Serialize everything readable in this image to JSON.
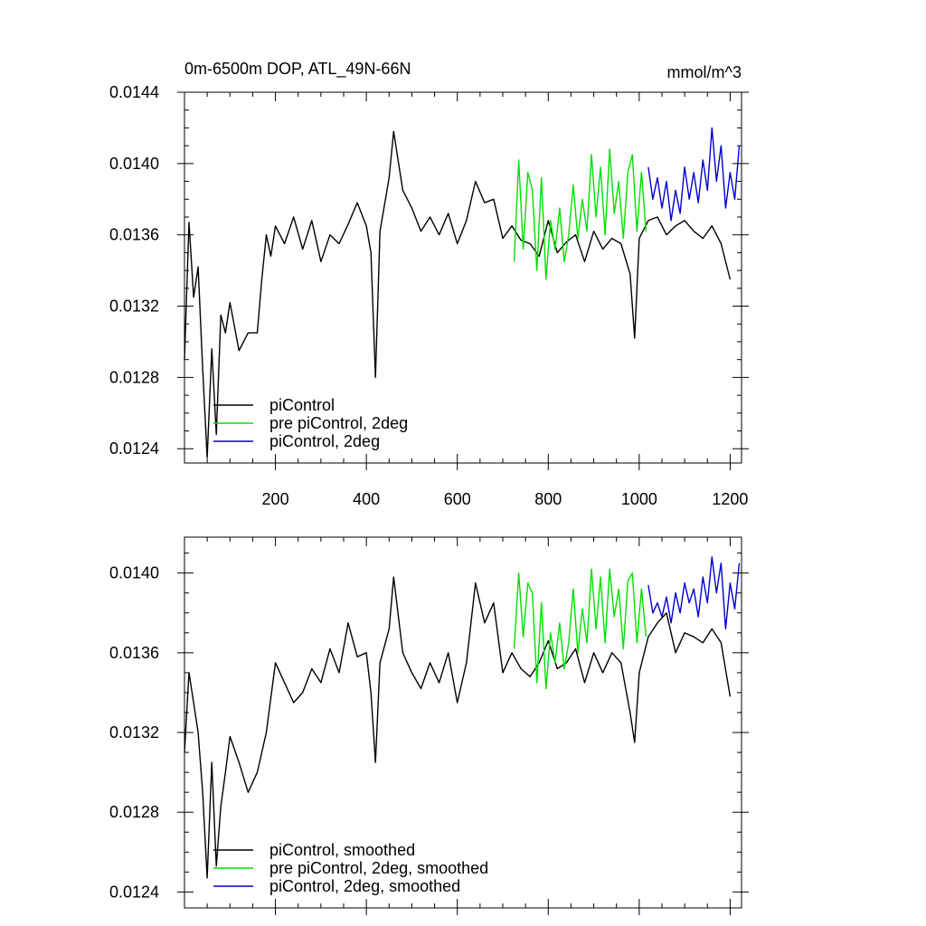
{
  "chart_data": [
    {
      "type": "line",
      "title": "0m-6500m DOP, ATL_49N-66N",
      "units": "mmol/m^3",
      "xlim": [
        0,
        1225
      ],
      "ylim": [
        0.01232,
        0.0144
      ],
      "xticks": [
        200,
        400,
        600,
        800,
        1000,
        1200
      ],
      "xtick_labels": [
        "200",
        "400",
        "600",
        "800",
        "1000",
        "1200"
      ],
      "yticks": [
        0.0124,
        0.0128,
        0.0132,
        0.0136,
        0.014,
        0.0144
      ],
      "ytick_labels": [
        "0.0124",
        "0.0128",
        "0.0132",
        "0.0136",
        "0.0140",
        "0.0144"
      ],
      "legend_position": "bottom-left",
      "series": [
        {
          "name": "piControl",
          "color": "#000000",
          "x": [
            0,
            10,
            20,
            30,
            40,
            50,
            60,
            70,
            80,
            90,
            100,
            120,
            140,
            160,
            170,
            180,
            190,
            200,
            220,
            240,
            260,
            280,
            300,
            320,
            340,
            360,
            380,
            400,
            410,
            420,
            430,
            450,
            460,
            480,
            500,
            520,
            540,
            560,
            580,
            600,
            620,
            640,
            660,
            680,
            700,
            720,
            740,
            760,
            780,
            800,
            820,
            840,
            860,
            880,
            900,
            920,
            940,
            960,
            980,
            990,
            1000,
            1020,
            1040,
            1060,
            1080,
            1100,
            1120,
            1140,
            1160,
            1180,
            1200
          ],
          "values": [
            0.0129,
            0.01367,
            0.01325,
            0.01342,
            0.01285,
            0.01235,
            0.01296,
            0.01248,
            0.01315,
            0.01305,
            0.01322,
            0.01295,
            0.01305,
            0.01305,
            0.01335,
            0.0136,
            0.01348,
            0.01365,
            0.01355,
            0.0137,
            0.01352,
            0.01368,
            0.01345,
            0.0136,
            0.01355,
            0.01366,
            0.01378,
            0.01365,
            0.0135,
            0.0128,
            0.01362,
            0.01392,
            0.01418,
            0.01385,
            0.01375,
            0.01362,
            0.0137,
            0.0136,
            0.01372,
            0.01355,
            0.01368,
            0.0139,
            0.01378,
            0.0138,
            0.01358,
            0.01365,
            0.01357,
            0.01355,
            0.01348,
            0.01368,
            0.0135,
            0.01356,
            0.0136,
            0.01345,
            0.01362,
            0.01352,
            0.01358,
            0.01355,
            0.01338,
            0.01302,
            0.01358,
            0.01368,
            0.0137,
            0.0136,
            0.01365,
            0.01368,
            0.01362,
            0.01358,
            0.01365,
            0.01355,
            0.01335
          ]
        },
        {
          "name": "pre piControl, 2deg",
          "color": "#00e000",
          "x": [
            725,
            735,
            745,
            755,
            765,
            775,
            785,
            795,
            805,
            815,
            825,
            835,
            845,
            855,
            865,
            875,
            885,
            895,
            905,
            915,
            925,
            935,
            945,
            955,
            965,
            975,
            985,
            995,
            1005,
            1015
          ],
          "values": [
            0.01345,
            0.01402,
            0.01352,
            0.01395,
            0.01385,
            0.0134,
            0.01392,
            0.01335,
            0.01368,
            0.01352,
            0.01375,
            0.01345,
            0.0136,
            0.01388,
            0.01358,
            0.0138,
            0.01362,
            0.01405,
            0.0137,
            0.01398,
            0.0136,
            0.01408,
            0.01372,
            0.0139,
            0.01358,
            0.01395,
            0.01405,
            0.01362,
            0.01395,
            0.01362
          ]
        },
        {
          "name": "piControl, 2deg",
          "color": "#0000d0",
          "x": [
            1020,
            1030,
            1040,
            1050,
            1060,
            1070,
            1080,
            1090,
            1100,
            1110,
            1120,
            1130,
            1140,
            1150,
            1160,
            1170,
            1180,
            1190,
            1200,
            1210,
            1220
          ],
          "values": [
            0.01398,
            0.0138,
            0.01392,
            0.01375,
            0.0139,
            0.01368,
            0.01385,
            0.01372,
            0.01398,
            0.0138,
            0.01395,
            0.01378,
            0.01402,
            0.01385,
            0.0142,
            0.0139,
            0.0141,
            0.01375,
            0.01395,
            0.0138,
            0.0141
          ]
        }
      ]
    },
    {
      "type": "line",
      "title": "",
      "units": "",
      "xlim": [
        0,
        1225
      ],
      "ylim": [
        0.01232,
        0.01418
      ],
      "xticks": [
        200,
        400,
        600,
        800,
        1000,
        1200
      ],
      "xtick_labels": [],
      "yticks": [
        0.0124,
        0.0128,
        0.0132,
        0.0136,
        0.014
      ],
      "ytick_labels": [
        "0.0124",
        "0.0128",
        "0.0132",
        "0.0136",
        "0.0140"
      ],
      "legend_position": "bottom-left",
      "series": [
        {
          "name": "piControl, smoothed",
          "color": "#000000",
          "x": [
            0,
            10,
            20,
            30,
            40,
            50,
            60,
            70,
            80,
            90,
            100,
            120,
            140,
            160,
            180,
            200,
            220,
            240,
            260,
            280,
            300,
            320,
            340,
            360,
            380,
            400,
            410,
            420,
            430,
            450,
            460,
            480,
            500,
            520,
            540,
            560,
            580,
            600,
            620,
            640,
            660,
            680,
            700,
            720,
            740,
            760,
            780,
            800,
            820,
            840,
            860,
            880,
            900,
            920,
            940,
            960,
            980,
            990,
            1000,
            1020,
            1040,
            1060,
            1080,
            1100,
            1120,
            1140,
            1160,
            1180,
            1200
          ],
          "values": [
            0.0131,
            0.0135,
            0.01335,
            0.0132,
            0.0129,
            0.01247,
            0.01305,
            0.01253,
            0.01283,
            0.013,
            0.01318,
            0.01305,
            0.0129,
            0.013,
            0.0132,
            0.01355,
            0.01345,
            0.01335,
            0.0134,
            0.01352,
            0.01345,
            0.01362,
            0.0135,
            0.01375,
            0.01358,
            0.0136,
            0.0134,
            0.01305,
            0.01355,
            0.01372,
            0.01398,
            0.0136,
            0.0135,
            0.01342,
            0.01355,
            0.01345,
            0.0136,
            0.01335,
            0.01355,
            0.01395,
            0.01375,
            0.01385,
            0.0135,
            0.0136,
            0.01352,
            0.01348,
            0.01355,
            0.01366,
            0.01352,
            0.01355,
            0.01362,
            0.01345,
            0.0136,
            0.0135,
            0.0136,
            0.01355,
            0.0133,
            0.01315,
            0.0135,
            0.01368,
            0.01375,
            0.0138,
            0.0136,
            0.0137,
            0.01368,
            0.01365,
            0.01372,
            0.01365,
            0.01338
          ]
        },
        {
          "name": "pre piControl, 2deg, smoothed",
          "color": "#00e000",
          "x": [
            725,
            735,
            745,
            755,
            765,
            775,
            785,
            795,
            805,
            815,
            825,
            835,
            845,
            855,
            865,
            875,
            885,
            895,
            905,
            915,
            925,
            935,
            945,
            955,
            965,
            975,
            985,
            995,
            1005,
            1015
          ],
          "values": [
            0.01362,
            0.014,
            0.01368,
            0.01395,
            0.0139,
            0.01345,
            0.01385,
            0.01342,
            0.0137,
            0.01355,
            0.01375,
            0.01352,
            0.01365,
            0.01392,
            0.0136,
            0.01382,
            0.01365,
            0.01402,
            0.01372,
            0.01398,
            0.01365,
            0.01402,
            0.01378,
            0.01392,
            0.01362,
            0.01396,
            0.014,
            0.01365,
            0.01392,
            0.01368
          ]
        },
        {
          "name": "piControl, 2deg, smoothed",
          "color": "#0000d0",
          "x": [
            1020,
            1030,
            1040,
            1050,
            1060,
            1070,
            1080,
            1090,
            1100,
            1110,
            1120,
            1130,
            1140,
            1150,
            1160,
            1170,
            1180,
            1190,
            1200,
            1210,
            1220
          ],
          "values": [
            0.01394,
            0.0138,
            0.01385,
            0.01378,
            0.01388,
            0.01375,
            0.0139,
            0.0138,
            0.01395,
            0.01385,
            0.01392,
            0.01378,
            0.01398,
            0.01385,
            0.01408,
            0.0139,
            0.01405,
            0.01372,
            0.01395,
            0.01382,
            0.01405
          ]
        }
      ]
    }
  ]
}
